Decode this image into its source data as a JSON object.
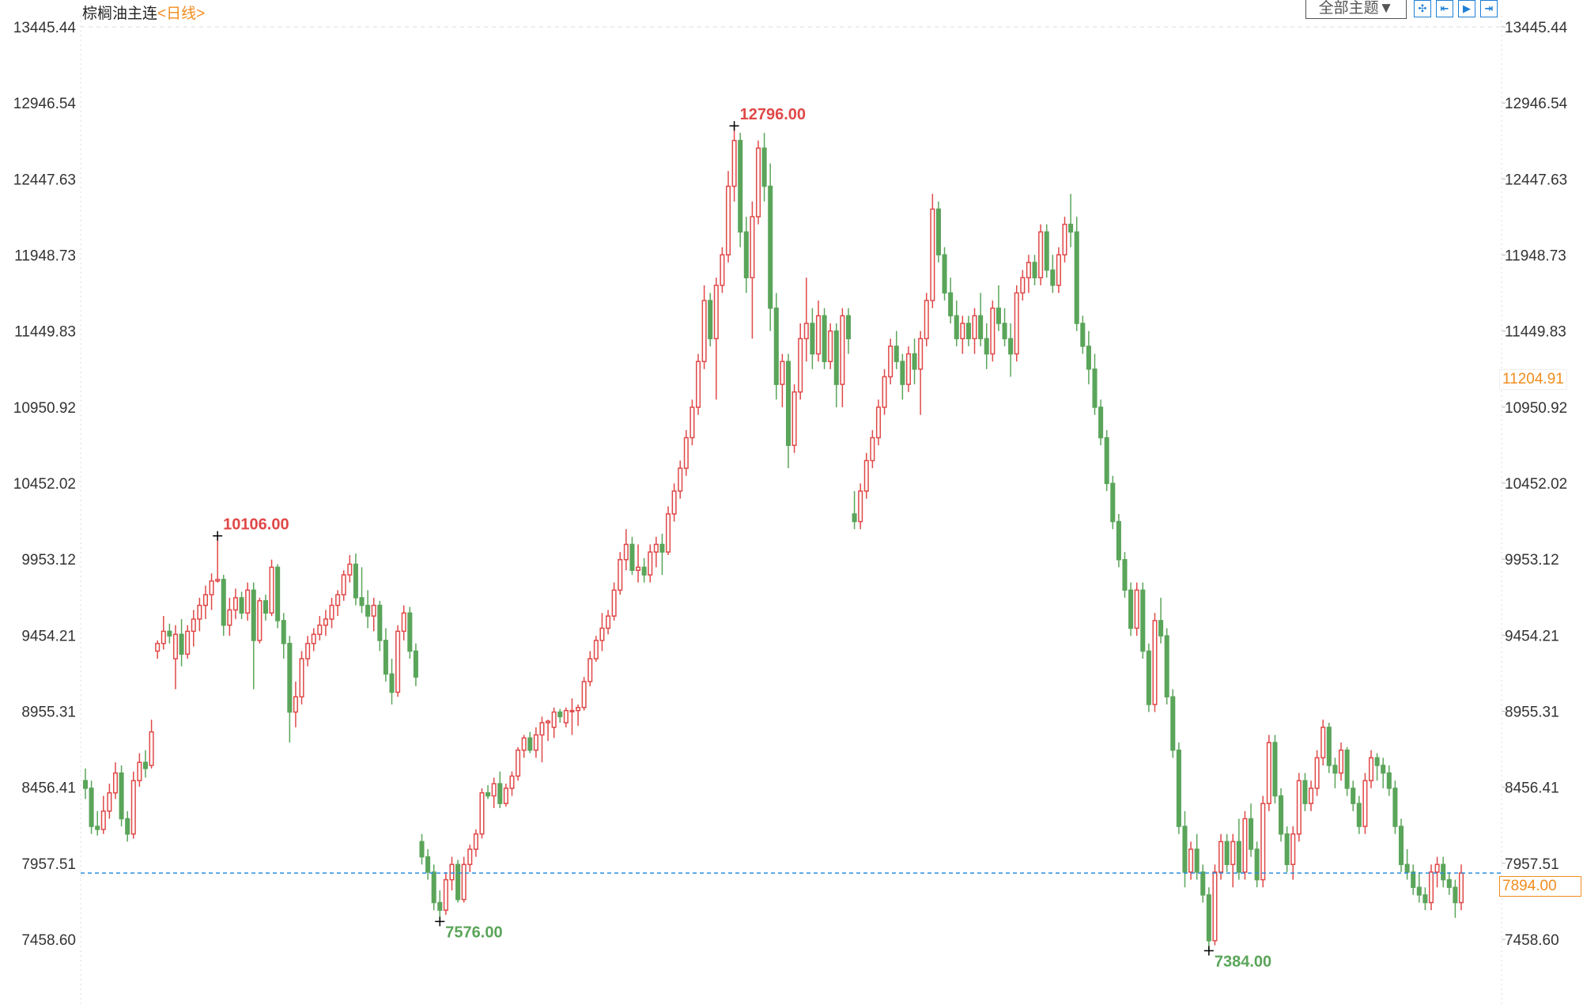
{
  "header": {
    "title": "棕榈油主连",
    "period": "<日线>",
    "theme_select": "全部主题▼",
    "tool_icons": [
      "crosshair-icon",
      "jump-start-icon",
      "play-icon",
      "jump-end-icon"
    ]
  },
  "price_tags": {
    "crosshair_price": "11204.91",
    "last_price": "7894.00"
  },
  "colors": {
    "up": "#e04848",
    "down": "#5aa55a",
    "last_line": "#2a8fe0",
    "tag": "#f08c1e"
  },
  "chart_data": {
    "type": "candlestick",
    "title": "棕榈油主连",
    "ylim": [
      7458.6,
      13445.44
    ],
    "y_ticks": [
      "13445.44",
      "12946.54",
      "12447.63",
      "11948.73",
      "11449.83",
      "10950.92",
      "10452.02",
      "9953.12",
      "9454.21",
      "8955.31",
      "8456.41",
      "7957.51",
      "7458.60"
    ],
    "last_price": 7894.0,
    "annotations": [
      {
        "label": "10106.00",
        "type": "high",
        "value": 10106
      },
      {
        "label": "12796.00",
        "type": "high",
        "value": 12796
      },
      {
        "label": "7576.00",
        "type": "low",
        "value": 7576
      },
      {
        "label": "7384.00",
        "type": "low",
        "value": 7384
      }
    ],
    "ohlc_fields": [
      "open",
      "high",
      "low",
      "close"
    ],
    "candles": [
      [
        8500,
        8580,
        8380,
        8450
      ],
      [
        8450,
        8500,
        8150,
        8200
      ],
      [
        8200,
        8300,
        8140,
        8180
      ],
      [
        8180,
        8400,
        8150,
        8300
      ],
      [
        8300,
        8480,
        8250,
        8420
      ],
      [
        8420,
        8620,
        8380,
        8550
      ],
      [
        8550,
        8600,
        8200,
        8250
      ],
      [
        8250,
        8300,
        8100,
        8150
      ],
      [
        8150,
        8560,
        8120,
        8500
      ],
      [
        8500,
        8680,
        8460,
        8620
      ],
      [
        8620,
        8700,
        8520,
        8580
      ],
      [
        8600,
        8900,
        8580,
        8820
      ],
      [
        9350,
        9420,
        9300,
        9400
      ],
      [
        9400,
        9580,
        9360,
        9480
      ],
      [
        9480,
        9530,
        9400,
        9450
      ],
      [
        9300,
        9520,
        9100,
        9460
      ],
      [
        9460,
        9560,
        9250,
        9330
      ],
      [
        9330,
        9520,
        9300,
        9480
      ],
      [
        9480,
        9620,
        9380,
        9560
      ],
      [
        9560,
        9700,
        9480,
        9650
      ],
      [
        9650,
        9780,
        9560,
        9720
      ],
      [
        9720,
        9860,
        9620,
        9810
      ],
      [
        9810,
        10106,
        9800,
        9820
      ],
      [
        9820,
        9850,
        9450,
        9520
      ],
      [
        9520,
        9700,
        9450,
        9620
      ],
      [
        9620,
        9760,
        9560,
        9700
      ],
      [
        9700,
        9740,
        9560,
        9600
      ],
      [
        9600,
        9800,
        9550,
        9750
      ],
      [
        9750,
        9800,
        9100,
        9420
      ],
      [
        9420,
        9700,
        9400,
        9680
      ],
      [
        9680,
        9720,
        9550,
        9600
      ],
      [
        9600,
        9950,
        9580,
        9900
      ],
      [
        9900,
        9920,
        9500,
        9550
      ],
      [
        9550,
        9600,
        9300,
        9400
      ],
      [
        9400,
        9450,
        8750,
        8950
      ],
      [
        8950,
        9150,
        8850,
        9050
      ],
      [
        9050,
        9350,
        9000,
        9300
      ],
      [
        9300,
        9450,
        9250,
        9400
      ],
      [
        9400,
        9500,
        9350,
        9460
      ],
      [
        9460,
        9580,
        9420,
        9520
      ],
      [
        9520,
        9620,
        9450,
        9560
      ],
      [
        9560,
        9700,
        9500,
        9650
      ],
      [
        9650,
        9750,
        9580,
        9720
      ],
      [
        9720,
        9880,
        9680,
        9850
      ],
      [
        9850,
        9980,
        9800,
        9920
      ],
      [
        9920,
        9990,
        9650,
        9700
      ],
      [
        9700,
        9900,
        9600,
        9650
      ],
      [
        9650,
        9750,
        9500,
        9580
      ],
      [
        9580,
        9700,
        9480,
        9650
      ],
      [
        9650,
        9680,
        9350,
        9420
      ],
      [
        9420,
        9500,
        9150,
        9200
      ],
      [
        9200,
        9300,
        9000,
        9080
      ],
      [
        9080,
        9520,
        9050,
        9480
      ],
      [
        9480,
        9650,
        9420,
        9600
      ],
      [
        9600,
        9640,
        9300,
        9350
      ],
      [
        9350,
        9400,
        9120,
        9180
      ],
      [
        8100,
        8150,
        7950,
        8000
      ],
      [
        8000,
        8050,
        7850,
        7900
      ],
      [
        7900,
        7950,
        7650,
        7700
      ],
      [
        7700,
        7780,
        7576,
        7650
      ],
      [
        7650,
        7900,
        7620,
        7850
      ],
      [
        7850,
        8000,
        7780,
        7950
      ],
      [
        7950,
        7980,
        7700,
        7720
      ],
      [
        7720,
        8000,
        7700,
        7950
      ],
      [
        7950,
        8080,
        7900,
        8050
      ],
      [
        8050,
        8180,
        8000,
        8150
      ],
      [
        8150,
        8450,
        8120,
        8420
      ],
      [
        8420,
        8470,
        8380,
        8400
      ],
      [
        8400,
        8520,
        8320,
        8480
      ],
      [
        8480,
        8560,
        8320,
        8350
      ],
      [
        8350,
        8480,
        8330,
        8450
      ],
      [
        8450,
        8560,
        8400,
        8530
      ],
      [
        8530,
        8720,
        8500,
        8700
      ],
      [
        8700,
        8800,
        8650,
        8780
      ],
      [
        8780,
        8820,
        8680,
        8700
      ],
      [
        8700,
        8850,
        8650,
        8800
      ],
      [
        8800,
        8920,
        8620,
        8880
      ],
      [
        8880,
        8900,
        8760,
        8890
      ],
      [
        8850,
        8980,
        8780,
        8950
      ],
      [
        8950,
        8970,
        8880,
        8920
      ],
      [
        8880,
        8980,
        8850,
        8960
      ],
      [
        8960,
        9040,
        8800,
        8960
      ],
      [
        8960,
        9000,
        8860,
        8980
      ],
      [
        8980,
        9180,
        8960,
        9150
      ],
      [
        9150,
        9350,
        9120,
        9300
      ],
      [
        9300,
        9450,
        9280,
        9420
      ],
      [
        9420,
        9600,
        9350,
        9500
      ],
      [
        9500,
        9620,
        9460,
        9580
      ],
      [
        9580,
        9800,
        9550,
        9750
      ],
      [
        9750,
        10000,
        9720,
        9950
      ],
      [
        9950,
        10150,
        9880,
        10050
      ],
      [
        10050,
        10100,
        9850,
        9880
      ],
      [
        9880,
        10050,
        9800,
        9900
      ],
      [
        9900,
        9960,
        9800,
        9850
      ],
      [
        9850,
        10050,
        9800,
        10000
      ],
      [
        10000,
        10100,
        9900,
        10050
      ],
      [
        10050,
        10120,
        9850,
        10000
      ],
      [
        10000,
        10300,
        9980,
        10250
      ],
      [
        10250,
        10450,
        10200,
        10400
      ],
      [
        10400,
        10600,
        10350,
        10550
      ],
      [
        10550,
        10800,
        10500,
        10750
      ],
      [
        10750,
        11000,
        10700,
        10950
      ],
      [
        10950,
        11300,
        10900,
        11250
      ],
      [
        11250,
        11750,
        11200,
        11650
      ],
      [
        11650,
        11700,
        11350,
        11400
      ],
      [
        11400,
        11800,
        11000,
        11750
      ],
      [
        11750,
        12000,
        11700,
        11950
      ],
      [
        11950,
        12500,
        11900,
        12400
      ],
      [
        12400,
        12796,
        12300,
        12700
      ],
      [
        12700,
        12750,
        12000,
        12100
      ],
      [
        12100,
        12200,
        11700,
        11800
      ],
      [
        11800,
        12300,
        11400,
        12200
      ],
      [
        12200,
        12700,
        12150,
        12650
      ],
      [
        12650,
        12750,
        12300,
        12400
      ],
      [
        12400,
        12550,
        11450,
        11600
      ],
      [
        11600,
        11700,
        11000,
        11100
      ],
      [
        11100,
        11300,
        10950,
        11250
      ],
      [
        11250,
        11300,
        10550,
        10700
      ],
      [
        10700,
        11100,
        10650,
        11050
      ],
      [
        11050,
        11500,
        11000,
        11400
      ],
      [
        11400,
        11800,
        11250,
        11500
      ],
      [
        11500,
        11600,
        11200,
        11300
      ],
      [
        11300,
        11650,
        11250,
        11550
      ],
      [
        11550,
        11600,
        11200,
        11250
      ],
      [
        11250,
        11500,
        11200,
        11450
      ],
      [
        11450,
        11500,
        10950,
        11100
      ],
      [
        11100,
        11600,
        10950,
        11550
      ],
      [
        11550,
        11600,
        11300,
        11400
      ],
      [
        10250,
        10400,
        10150,
        10200
      ],
      [
        10200,
        10450,
        10150,
        10400
      ],
      [
        10400,
        10650,
        10350,
        10600
      ],
      [
        10600,
        10800,
        10550,
        10750
      ],
      [
        10750,
        11000,
        10700,
        10950
      ],
      [
        10950,
        11200,
        10900,
        11150
      ],
      [
        11150,
        11400,
        11100,
        11350
      ],
      [
        11350,
        11450,
        11200,
        11250
      ],
      [
        11250,
        11300,
        11000,
        11100
      ],
      [
        11100,
        11350,
        11050,
        11300
      ],
      [
        11300,
        11400,
        11100,
        11200
      ],
      [
        11200,
        11450,
        10900,
        11400
      ],
      [
        11400,
        11700,
        11350,
        11650
      ],
      [
        11650,
        12350,
        11600,
        12250
      ],
      [
        12250,
        12300,
        11900,
        11950
      ],
      [
        11950,
        12000,
        11650,
        11700
      ],
      [
        11700,
        11800,
        11500,
        11550
      ],
      [
        11550,
        11650,
        11350,
        11400
      ],
      [
        11400,
        11550,
        11300,
        11500
      ],
      [
        11500,
        11550,
        11350,
        11400
      ],
      [
        11400,
        11600,
        11300,
        11550
      ],
      [
        11550,
        11700,
        11350,
        11400
      ],
      [
        11400,
        11500,
        11200,
        11300
      ],
      [
        11300,
        11650,
        11250,
        11600
      ],
      [
        11600,
        11750,
        11450,
        11500
      ],
      [
        11500,
        11600,
        11350,
        11400
      ],
      [
        11400,
        11500,
        11150,
        11300
      ],
      [
        11300,
        11750,
        11250,
        11700
      ],
      [
        11700,
        11850,
        11650,
        11800
      ],
      [
        11800,
        11950,
        11700,
        11900
      ],
      [
        11900,
        11950,
        11750,
        11800
      ],
      [
        11800,
        12150,
        11750,
        12100
      ],
      [
        12100,
        12150,
        11800,
        11850
      ],
      [
        11850,
        11950,
        11700,
        11750
      ],
      [
        11750,
        12000,
        11700,
        11950
      ],
      [
        11950,
        12200,
        11900,
        12150
      ],
      [
        12150,
        12350,
        12000,
        12100
      ],
      [
        12100,
        12200,
        11450,
        11500
      ],
      [
        11500,
        11550,
        11300,
        11350
      ],
      [
        11350,
        11450,
        11100,
        11200
      ],
      [
        11200,
        11300,
        10900,
        10950
      ],
      [
        10950,
        11000,
        10700,
        10750
      ],
      [
        10750,
        10800,
        10400,
        10450
      ],
      [
        10450,
        10500,
        10150,
        10200
      ],
      [
        10200,
        10250,
        9900,
        9950
      ],
      [
        9950,
        10000,
        9700,
        9750
      ],
      [
        9750,
        9800,
        9450,
        9500
      ],
      [
        9500,
        9800,
        9450,
        9750
      ],
      [
        9750,
        9800,
        9300,
        9350
      ],
      [
        9350,
        9400,
        8950,
        9000
      ],
      [
        9000,
        9600,
        8950,
        9550
      ],
      [
        9550,
        9700,
        9400,
        9450
      ],
      [
        9450,
        9500,
        9000,
        9050
      ],
      [
        9050,
        9100,
        8650,
        8700
      ],
      [
        8700,
        8750,
        8150,
        8200
      ],
      [
        8200,
        8300,
        7800,
        7900
      ],
      [
        7900,
        8100,
        7850,
        8050
      ],
      [
        8050,
        8150,
        7850,
        7900
      ],
      [
        7900,
        7950,
        7700,
        7750
      ],
      [
        7750,
        7800,
        7384,
        7450
      ],
      [
        7450,
        7950,
        7420,
        7900
      ],
      [
        7900,
        8150,
        7850,
        8100
      ],
      [
        8100,
        8150,
        7900,
        7950
      ],
      [
        7950,
        8150,
        7800,
        8100
      ],
      [
        8100,
        8250,
        7850,
        7900
      ],
      [
        7900,
        8300,
        7850,
        8250
      ],
      [
        8250,
        8350,
        8000,
        8050
      ],
      [
        8050,
        8100,
        7800,
        7850
      ],
      [
        7850,
        8400,
        7800,
        8350
      ],
      [
        8350,
        8800,
        8300,
        8750
      ],
      [
        8750,
        8800,
        8350,
        8400
      ],
      [
        8400,
        8450,
        8100,
        8150
      ],
      [
        8150,
        8200,
        7900,
        7950
      ],
      [
        7950,
        8200,
        7850,
        8150
      ],
      [
        8150,
        8550,
        8100,
        8500
      ],
      [
        8500,
        8550,
        8300,
        8350
      ],
      [
        8350,
        8500,
        8300,
        8450
      ],
      [
        8450,
        8700,
        8400,
        8650
      ],
      [
        8650,
        8900,
        8600,
        8850
      ],
      [
        8850,
        8880,
        8550,
        8600
      ],
      [
        8600,
        8650,
        8450,
        8550
      ],
      [
        8550,
        8750,
        8500,
        8700
      ],
      [
        8700,
        8720,
        8400,
        8450
      ],
      [
        8450,
        8500,
        8300,
        8350
      ],
      [
        8350,
        8400,
        8150,
        8200
      ],
      [
        8200,
        8550,
        8150,
        8500
      ],
      [
        8500,
        8700,
        8450,
        8650
      ],
      [
        8650,
        8680,
        8500,
        8600
      ],
      [
        8600,
        8650,
        8450,
        8550
      ],
      [
        8550,
        8600,
        8400,
        8450
      ],
      [
        8450,
        8500,
        8150,
        8200
      ],
      [
        8200,
        8250,
        7900,
        7950
      ],
      [
        7950,
        8050,
        7850,
        7900
      ],
      [
        7900,
        7950,
        7750,
        7800
      ],
      [
        7800,
        7900,
        7700,
        7750
      ],
      [
        7750,
        7800,
        7650,
        7700
      ],
      [
        7700,
        7950,
        7650,
        7900
      ],
      [
        7900,
        8000,
        7800,
        7950
      ],
      [
        7950,
        8000,
        7800,
        7850
      ],
      [
        7850,
        7900,
        7750,
        7800
      ],
      [
        7800,
        7850,
        7600,
        7700
      ],
      [
        7700,
        7950,
        7650,
        7894
      ]
    ]
  }
}
